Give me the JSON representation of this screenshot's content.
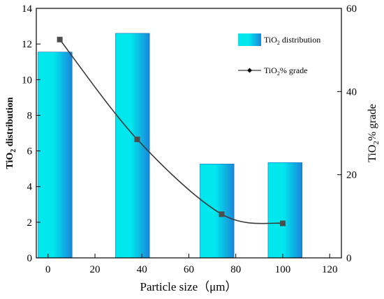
{
  "chart_data": {
    "type": "bar+line",
    "x_axis": {
      "label": "Particle size（μm）",
      "ticks": [
        "0",
        "20",
        "40",
        "60",
        "80",
        "100",
        "120"
      ],
      "range": [
        -5,
        125
      ]
    },
    "y_left": {
      "label_main": "TiO",
      "label_sub": "2",
      "label_rest": " distribution",
      "ticks": [
        "0",
        "2",
        "4",
        "6",
        "8",
        "10",
        "12",
        "14"
      ],
      "range": [
        0,
        14
      ]
    },
    "y_right": {
      "label_main": "TiO",
      "label_sub": "2",
      "label_rest": "% grade",
      "ticks": [
        "0",
        "20",
        "40",
        "60"
      ],
      "range": [
        0,
        60
      ]
    },
    "bars": {
      "name_main": "TiO",
      "name_sub": "2",
      "name_rest": " distribution",
      "x": [
        3,
        36,
        72,
        101
      ],
      "values": [
        11.55,
        12.6,
        5.27,
        5.35
      ],
      "width": 14.5,
      "color_light": "#00e8ee",
      "color_dark": "#1a86d8"
    },
    "line": {
      "name_main": "TiO",
      "name_sub": "2",
      "name_rest": "%  grade",
      "x": [
        5,
        38,
        74,
        100
      ],
      "values": [
        52.5,
        28.5,
        10.5,
        8.3
      ],
      "color": "#3a3a3a",
      "marker_color": "#4d4d4d"
    },
    "legend_position": "top-right"
  }
}
